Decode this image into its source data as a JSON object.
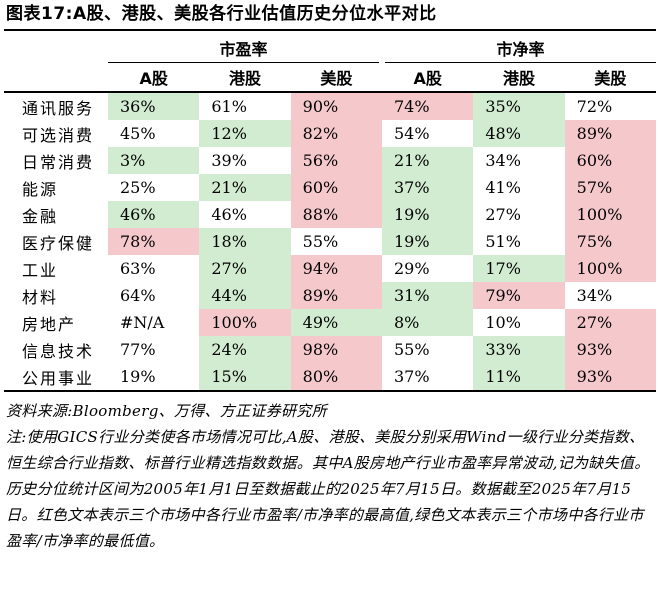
{
  "title": "图表17:A股、港股、美股各行业估值历史分位水平对比",
  "table": {
    "groups": [
      "市盈率",
      "市净率"
    ],
    "columns": [
      "A股",
      "港股",
      "美股",
      "A股",
      "港股",
      "美股"
    ],
    "rows": [
      {
        "name": "通讯服务",
        "cells": [
          {
            "v": "36%",
            "c": "lo"
          },
          {
            "v": "61%",
            "c": ""
          },
          {
            "v": "90%",
            "c": "hi"
          },
          {
            "v": "74%",
            "c": "hi"
          },
          {
            "v": "35%",
            "c": "lo"
          },
          {
            "v": "72%",
            "c": ""
          }
        ]
      },
      {
        "name": "可选消费",
        "cells": [
          {
            "v": "45%",
            "c": ""
          },
          {
            "v": "12%",
            "c": "lo"
          },
          {
            "v": "82%",
            "c": "hi"
          },
          {
            "v": "54%",
            "c": ""
          },
          {
            "v": "48%",
            "c": "lo"
          },
          {
            "v": "89%",
            "c": "hi"
          }
        ]
      },
      {
        "name": "日常消费",
        "cells": [
          {
            "v": "3%",
            "c": "lo"
          },
          {
            "v": "39%",
            "c": ""
          },
          {
            "v": "56%",
            "c": "hi"
          },
          {
            "v": "21%",
            "c": "lo"
          },
          {
            "v": "34%",
            "c": ""
          },
          {
            "v": "60%",
            "c": "hi"
          }
        ]
      },
      {
        "name": "能源",
        "cells": [
          {
            "v": "25%",
            "c": ""
          },
          {
            "v": "21%",
            "c": "lo"
          },
          {
            "v": "60%",
            "c": "hi"
          },
          {
            "v": "37%",
            "c": "lo"
          },
          {
            "v": "41%",
            "c": ""
          },
          {
            "v": "57%",
            "c": "hi"
          }
        ]
      },
      {
        "name": "金融",
        "cells": [
          {
            "v": "46%",
            "c": "lo"
          },
          {
            "v": "46%",
            "c": ""
          },
          {
            "v": "88%",
            "c": "hi"
          },
          {
            "v": "19%",
            "c": "lo"
          },
          {
            "v": "27%",
            "c": ""
          },
          {
            "v": "100%",
            "c": "hi"
          }
        ]
      },
      {
        "name": "医疗保健",
        "cells": [
          {
            "v": "78%",
            "c": "hi"
          },
          {
            "v": "18%",
            "c": "lo"
          },
          {
            "v": "55%",
            "c": ""
          },
          {
            "v": "19%",
            "c": "lo"
          },
          {
            "v": "51%",
            "c": ""
          },
          {
            "v": "75%",
            "c": "hi"
          }
        ]
      },
      {
        "name": "工业",
        "cells": [
          {
            "v": "63%",
            "c": ""
          },
          {
            "v": "27%",
            "c": "lo"
          },
          {
            "v": "94%",
            "c": "hi"
          },
          {
            "v": "29%",
            "c": ""
          },
          {
            "v": "17%",
            "c": "lo"
          },
          {
            "v": "100%",
            "c": "hi"
          }
        ]
      },
      {
        "name": "材料",
        "cells": [
          {
            "v": "64%",
            "c": ""
          },
          {
            "v": "44%",
            "c": "lo"
          },
          {
            "v": "89%",
            "c": "hi"
          },
          {
            "v": "31%",
            "c": "lo"
          },
          {
            "v": "79%",
            "c": "hi"
          },
          {
            "v": "34%",
            "c": ""
          }
        ]
      },
      {
        "name": "房地产",
        "cells": [
          {
            "v": "#N/A",
            "c": ""
          },
          {
            "v": "100%",
            "c": "hi"
          },
          {
            "v": "49%",
            "c": "lo"
          },
          {
            "v": "8%",
            "c": "lo"
          },
          {
            "v": "10%",
            "c": ""
          },
          {
            "v": "27%",
            "c": "hi"
          }
        ]
      },
      {
        "name": "信息技术",
        "cells": [
          {
            "v": "77%",
            "c": ""
          },
          {
            "v": "24%",
            "c": "lo"
          },
          {
            "v": "98%",
            "c": "hi"
          },
          {
            "v": "55%",
            "c": ""
          },
          {
            "v": "33%",
            "c": "lo"
          },
          {
            "v": "93%",
            "c": "hi"
          }
        ]
      },
      {
        "name": "公用事业",
        "cells": [
          {
            "v": "19%",
            "c": ""
          },
          {
            "v": "15%",
            "c": "lo"
          },
          {
            "v": "80%",
            "c": "hi"
          },
          {
            "v": "37%",
            "c": ""
          },
          {
            "v": "11%",
            "c": "lo"
          },
          {
            "v": "93%",
            "c": "hi"
          }
        ]
      }
    ]
  },
  "source": "资料来源:Bloomberg、万得、方正证券研究所",
  "note": "注:使用GICS行业分类使各市场情况可比,A股、港股、美股分别采用Wind一级行业分类指数、恒生综合行业指数、标普行业精选指数数据。其中A股房地产行业市盈率异常波动,记为缺失值。历史分位统计区间为2005年1月1日至数据截止的2025年7月15日。数据截至2025年7月15日。红色文本表示三个市场中各行业市盈率/市净率的最高值,绿色文本表示三个市场中各行业市盈率/市净率的最低值。",
  "colors": {
    "highest": "#f5c8cc",
    "lowest": "#d2ecd1"
  }
}
